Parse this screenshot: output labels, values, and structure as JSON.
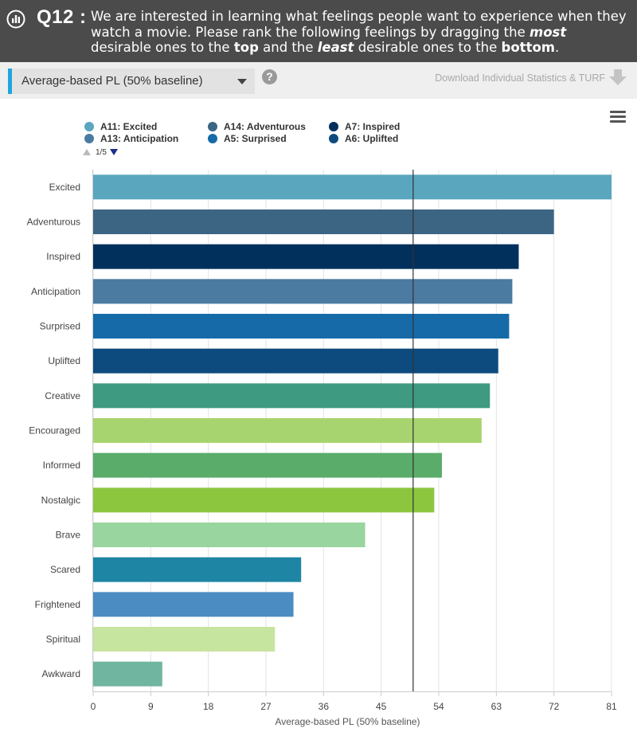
{
  "header": {
    "question_number": "Q12 :",
    "question_parts": [
      {
        "text": "We are interested in learning what feelings people want to experience when they watch a movie. Please rank the following feelings by dragging the ",
        "style": "normal"
      },
      {
        "text": "most",
        "style": "bold-italic"
      },
      {
        "text": " desirable ones to the ",
        "style": "normal"
      },
      {
        "text": "top",
        "style": "bold"
      },
      {
        "text": " and the ",
        "style": "normal"
      },
      {
        "text": "least",
        "style": "bold-italic"
      },
      {
        "text": " desirable ones to the ",
        "style": "normal"
      },
      {
        "text": "bottom",
        "style": "bold"
      },
      {
        "text": ".",
        "style": "normal"
      }
    ]
  },
  "toolbar": {
    "selected_metric": "Average-based PL (50% baseline)",
    "help_label": "?",
    "download_label": "Download Individual Statistics & TURF"
  },
  "legend": {
    "items": [
      {
        "label": "A11: Excited",
        "color": "#5aa6bf"
      },
      {
        "label": "A14: Adventurous",
        "color": "#3c6584"
      },
      {
        "label": "A7: Inspired",
        "color": "#02305d"
      },
      {
        "label": "A13: Anticipation",
        "color": "#4b7ba1"
      },
      {
        "label": "A5: Surprised",
        "color": "#166aa8"
      },
      {
        "label": "A6: Uplifted",
        "color": "#0d4b7e"
      }
    ],
    "page_indicator": "1/5"
  },
  "chart_data": {
    "type": "bar",
    "orientation": "horizontal",
    "title": "",
    "xlabel": "Average-based PL (50% baseline)",
    "ylabel": "",
    "xlim": [
      0,
      81
    ],
    "x_ticks": [
      0,
      9,
      18,
      27,
      36,
      45,
      54,
      63,
      72,
      81
    ],
    "reference_line": 50,
    "grid": true,
    "categories": [
      "Excited",
      "Adventurous",
      "Inspired",
      "Anticipation",
      "Surprised",
      "Uplifted",
      "Creative",
      "Encouraged",
      "Informed",
      "Nostalgic",
      "Brave",
      "Scared",
      "Frightened",
      "Spiritual",
      "Awkward"
    ],
    "values": [
      81,
      72,
      66.5,
      65.5,
      65,
      63.3,
      62,
      60.7,
      54.5,
      53.3,
      42.5,
      32.5,
      31.3,
      28.4,
      10.8
    ],
    "colors": [
      "#5aa6bf",
      "#3c6584",
      "#02305d",
      "#4b7ba1",
      "#166aa8",
      "#0d4b7e",
      "#3e9a80",
      "#a8d46f",
      "#5aac6a",
      "#8cc63f",
      "#99d59e",
      "#1f85a4",
      "#4b8cc2",
      "#c6e59f",
      "#70b5a0"
    ]
  }
}
